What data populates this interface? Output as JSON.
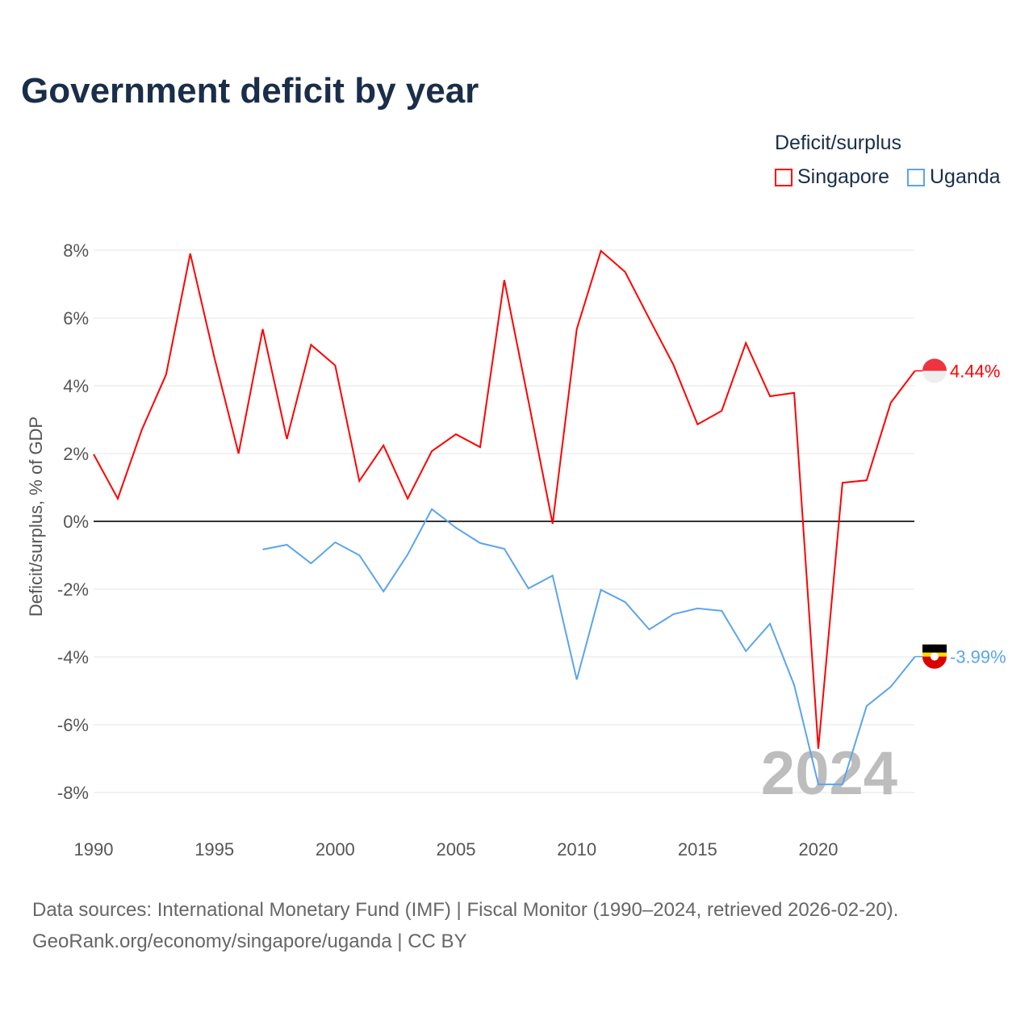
{
  "title": "Government deficit by year",
  "legend": {
    "title": "Deficit/surplus",
    "items": [
      {
        "name": "Singapore",
        "color": "#ff0000"
      },
      {
        "name": "Uganda",
        "color": "#5ba4ee"
      }
    ]
  },
  "source": {
    "line1": "Data sources: International Monetary Fund (IMF) | Fiscal Monitor (1990–2024, retrieved 2026-02-20).",
    "line2": "GeoRank.org/economy/singapore/uganda | CC BY"
  },
  "chart_data": {
    "type": "line",
    "title": "Government deficit by year",
    "xlabel": "",
    "ylabel": "Deficit/surplus, % of GDP",
    "xlim": [
      1990,
      2024
    ],
    "ylim": [
      -9,
      9
    ],
    "yticks": [
      8,
      6,
      4,
      2,
      0,
      -2,
      -4,
      -6,
      -8
    ],
    "ytick_labels": [
      "8%",
      "6%",
      "4%",
      "2%",
      "0%",
      "-2%",
      "-4%",
      "-6%",
      "-8%"
    ],
    "xticks": [
      1990,
      1995,
      2000,
      2005,
      2010,
      2015,
      2020
    ],
    "xtick_labels": [
      "1990",
      "1995",
      "2000",
      "2005",
      "2010",
      "2015",
      "2020"
    ],
    "watermark": "2024",
    "series": [
      {
        "name": "Singapore",
        "color": "#ff0000",
        "end_label": "4.44%",
        "x": [
          1990,
          1991,
          1992,
          1993,
          1994,
          1995,
          1996,
          1997,
          1998,
          1999,
          2000,
          2001,
          2002,
          2003,
          2004,
          2005,
          2006,
          2007,
          2008,
          2009,
          2010,
          2011,
          2012,
          2013,
          2014,
          2015,
          2016,
          2017,
          2018,
          2019,
          2020,
          2021,
          2022,
          2023,
          2024
        ],
        "values": [
          1.98,
          0.67,
          2.71,
          4.33,
          7.9,
          4.83,
          2.0,
          5.67,
          2.43,
          5.21,
          4.6,
          1.19,
          2.24,
          0.67,
          2.07,
          2.57,
          2.19,
          7.12,
          3.55,
          -0.07,
          5.67,
          7.98,
          7.36,
          5.98,
          4.62,
          2.86,
          3.26,
          5.26,
          3.69,
          3.79,
          -6.71,
          1.14,
          1.21,
          3.5,
          4.44
        ]
      },
      {
        "name": "Uganda",
        "color": "#5ba4ee",
        "end_label": "-3.99%",
        "x": [
          1997,
          1998,
          1999,
          2000,
          2001,
          2002,
          2003,
          2004,
          2005,
          2006,
          2007,
          2008,
          2009,
          2010,
          2011,
          2012,
          2013,
          2014,
          2015,
          2016,
          2017,
          2018,
          2019,
          2020,
          2021,
          2022,
          2023,
          2024
        ],
        "values": [
          -0.83,
          -0.69,
          -1.24,
          -0.62,
          -1.0,
          -2.07,
          -0.98,
          0.36,
          -0.19,
          -0.64,
          -0.81,
          -1.98,
          -1.6,
          -4.67,
          -2.02,
          -2.38,
          -3.19,
          -2.74,
          -2.57,
          -2.64,
          -3.83,
          -3.02,
          -4.83,
          -7.76,
          -7.76,
          -5.45,
          -4.88,
          -3.99
        ]
      }
    ]
  }
}
